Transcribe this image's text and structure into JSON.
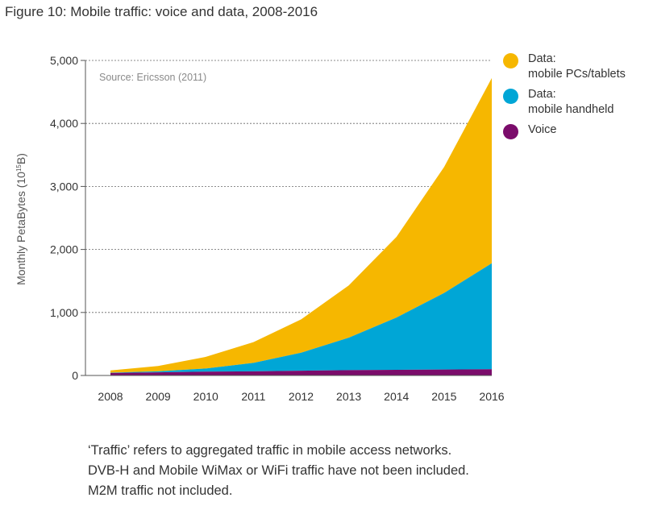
{
  "figure_title": "Figure 10: Mobile traffic: voice and data, 2008-2016",
  "chart_data": {
    "type": "area",
    "stacked": true,
    "title": "",
    "source_note": "Source: Ericsson (2011)",
    "x": [
      "2008",
      "2009",
      "2010",
      "2011",
      "2012",
      "2013",
      "2014",
      "2015",
      "2016"
    ],
    "xlabel": "",
    "ylabel_main": "Monthly PetaBytes (10",
    "ylabel_exp": "15",
    "ylabel_tail": "B)",
    "ylim": [
      0,
      5000
    ],
    "yticks": [
      0,
      1000,
      2000,
      3000,
      4000,
      5000
    ],
    "ytick_labels": [
      "0",
      "1,000",
      "2,000",
      "3,000",
      "4,000",
      "5,000"
    ],
    "grid": "horizontal-dashed",
    "legend_position": "right",
    "series": [
      {
        "name": "Voice",
        "color": "#7b0c6b",
        "values": [
          40,
          50,
          60,
          65,
          75,
          85,
          90,
          95,
          100
        ]
      },
      {
        "name": "Data: mobile handheld",
        "color": "#00a6d6",
        "values": [
          5,
          15,
          50,
          135,
          285,
          515,
          830,
          1215,
          1680
        ]
      },
      {
        "name": "Data: mobile PCs/tablets",
        "color": "#f6b700",
        "values": [
          35,
          85,
          185,
          330,
          530,
          830,
          1280,
          2000,
          2940
        ]
      }
    ]
  },
  "legend": [
    {
      "label": "Data:\nmobile PCs/tablets",
      "color": "#f6b700",
      "icon": "circle"
    },
    {
      "label": "Data:\nmobile handheld",
      "color": "#00a6d6",
      "icon": "circle"
    },
    {
      "label": "Voice",
      "color": "#7b0c6b",
      "icon": "circle"
    }
  ],
  "footnotes": [
    "‘Traffic’ refers to aggregated traffic in mobile access networks.",
    "DVB-H and Mobile WiMax or WiFi traffic have not been included.",
    "M2M traffic not included."
  ]
}
